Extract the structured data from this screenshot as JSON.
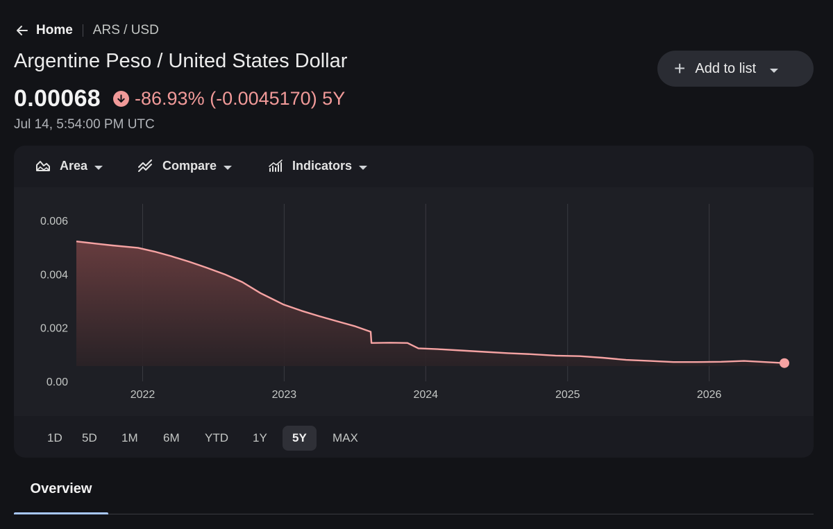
{
  "breadcrumb": {
    "home_label": "Home",
    "symbol": "ARS / USD"
  },
  "title": "Argentine Peso / United States Dollar",
  "price": {
    "value": "0.00068",
    "change": "-86.93% (-0.0045170) 5Y",
    "direction": "down",
    "timestamp": "Jul 14, 5:54:00 PM UTC"
  },
  "add_to_list": {
    "label": "Add to list"
  },
  "toolbar": {
    "area_label": "Area",
    "compare_label": "Compare",
    "indicators_label": "Indicators"
  },
  "ranges": [
    {
      "label": "1D",
      "active": false
    },
    {
      "label": "5D",
      "active": false
    },
    {
      "label": "1M",
      "active": false
    },
    {
      "label": "6M",
      "active": false
    },
    {
      "label": "YTD",
      "active": false
    },
    {
      "label": "1Y",
      "active": false
    },
    {
      "label": "5Y",
      "active": true
    },
    {
      "label": "MAX",
      "active": false
    }
  ],
  "tabs": {
    "overview_label": "Overview"
  },
  "colors": {
    "line": "#f6a3a3",
    "negative": "#f19a99",
    "tab_accent": "#a8c7fa",
    "background": "#121317"
  },
  "chart_data": {
    "type": "area",
    "ylim": [
      0,
      0.006
    ],
    "y_ticks": [
      "0.006",
      "0.004",
      "0.002",
      "0.00"
    ],
    "x_ticks": [
      "2022",
      "2023",
      "2024",
      "2025",
      "2026"
    ],
    "x": [
      "2021-07-14",
      "2021-09-01",
      "2021-10-15",
      "2021-12-20",
      "2022-02-01",
      "2022-03-15",
      "2022-05-01",
      "2022-06-15",
      "2022-08-01",
      "2022-09-15",
      "2022-11-01",
      "2022-12-31",
      "2023-02-15",
      "2023-04-01",
      "2023-05-15",
      "2023-07-01",
      "2023-08-12",
      "2023-08-14",
      "2023-10-01",
      "2023-11-15",
      "2023-12-13",
      "2024-02-01",
      "2024-04-01",
      "2024-06-01",
      "2024-08-01",
      "2024-10-01",
      "2024-12-01",
      "2025-02-01",
      "2025-04-01",
      "2025-06-01",
      "2025-08-01",
      "2025-10-01",
      "2025-12-01",
      "2026-02-01",
      "2026-04-01",
      "2026-07-14"
    ],
    "values": [
      0.00522,
      0.00514,
      0.00507,
      0.00498,
      0.00484,
      0.00467,
      0.00446,
      0.00424,
      0.00399,
      0.0037,
      0.00329,
      0.00286,
      0.00263,
      0.00243,
      0.00225,
      0.00206,
      0.00185,
      0.00143,
      0.00144,
      0.00143,
      0.00123,
      0.0012,
      0.00115,
      0.0011,
      0.00105,
      0.00101,
      0.00096,
      0.00094,
      0.00088,
      0.0008,
      0.00076,
      0.00072,
      0.00072,
      0.00073,
      0.00076,
      0.00068
    ]
  }
}
